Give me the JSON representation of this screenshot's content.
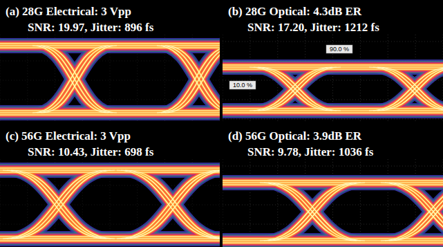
{
  "chart_data": [
    {
      "type": "eye",
      "title": "(a) 28G Electrical: 3 Vpp",
      "subtitle": "SNR: 19.97, Jitter: 896 fs"
    },
    {
      "type": "eye",
      "title": "(b) 28G Optical: 4.3dB ER",
      "subtitle": "SNR: 17.20, Jitter: 1212 fs",
      "annotations": [
        "90.0 %",
        "10.0 %"
      ]
    },
    {
      "type": "eye",
      "title": "(c) 56G Electrical: 3 Vpp",
      "subtitle": "SNR: 10.43, Jitter: 698 fs"
    },
    {
      "type": "eye",
      "title": "(d) 56G Optical: 3.9dB ER",
      "subtitle": "SNR: 9.78, Jitter: 1036 fs"
    }
  ]
}
